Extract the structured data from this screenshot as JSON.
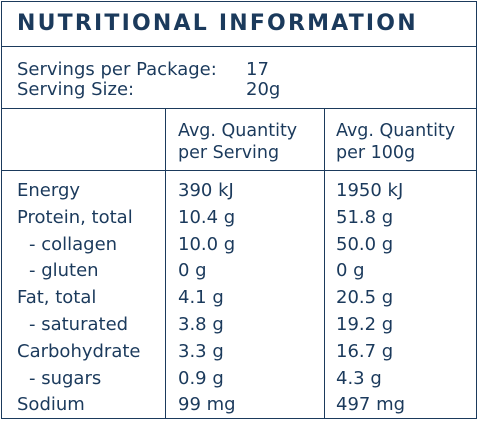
{
  "panel": {
    "title": "NUTRITIONAL INFORMATION",
    "servings_label": "Servings per Package:",
    "servings_value": "17",
    "size_label": "Serving Size:",
    "size_value": "20g",
    "col1_line1": "Avg. Quantity",
    "col1_line2": "per Serving",
    "col2_line1": "Avg. Quantity",
    "col2_line2": "per 100g",
    "rows": [
      {
        "name": "Energy",
        "per_serving": "390 kJ",
        "per_100g": "1950 kJ"
      },
      {
        "name": "Protein, total",
        "per_serving": "10.4 g",
        "per_100g": "51.8 g"
      },
      {
        "name": "- collagen",
        "per_serving": "10.0 g",
        "per_100g": "50.0 g"
      },
      {
        "name": "- gluten",
        "per_serving": "0 g",
        "per_100g": "0 g"
      },
      {
        "name": "Fat, total",
        "per_serving": "4.1 g",
        "per_100g": "20.5 g"
      },
      {
        "name": "- saturated",
        "per_serving": "3.8 g",
        "per_100g": "19.2 g"
      },
      {
        "name": "Carbohydrate",
        "per_serving": "3.3 g",
        "per_100g": "16.7 g"
      },
      {
        "name": "- sugars",
        "per_serving": "0.9 g",
        "per_100g": "4.3 g"
      },
      {
        "name": "Sodium",
        "per_serving": "99 mg",
        "per_100g": "497 mg"
      }
    ]
  },
  "colors": {
    "text": "#1b3a5c",
    "border": "#1b3a5c",
    "background": "#ffffff"
  }
}
